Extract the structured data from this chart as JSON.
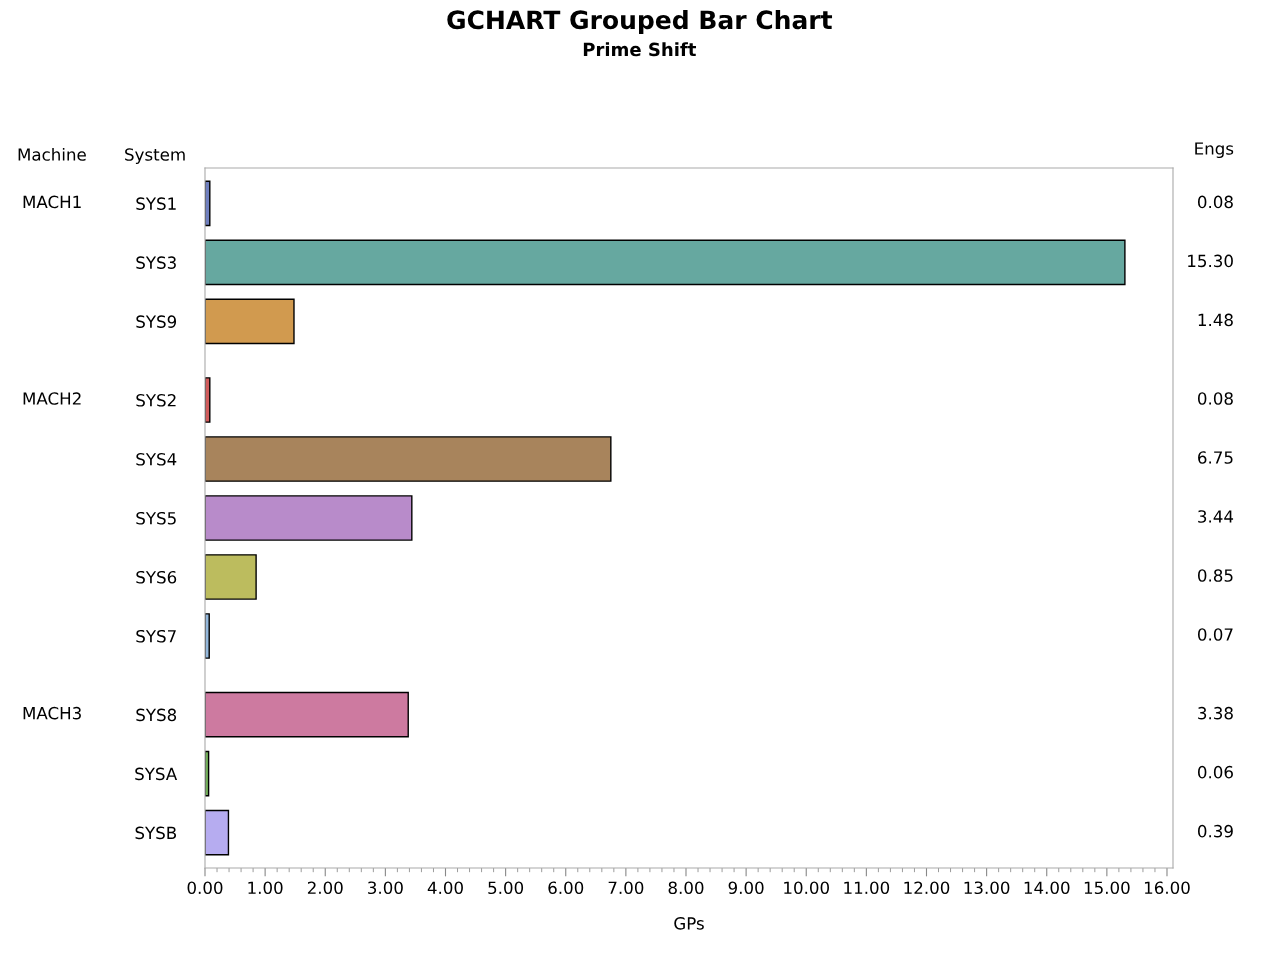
{
  "chart_data": {
    "type": "bar",
    "orientation": "horizontal",
    "title": "GCHART Grouped Bar Chart",
    "subtitle": "Prime Shift",
    "xlabel": "GPs",
    "categories": [
      "SYS1",
      "SYS3",
      "SYS9",
      null,
      "SYS2",
      "SYS4",
      "SYS5",
      "SYS6",
      "SYS7",
      null,
      "SYS8",
      "SYSA",
      "SYSB"
    ],
    "values": [
      0.08,
      15.3,
      1.48,
      null,
      0.08,
      6.75,
      3.44,
      0.85,
      0.07,
      null,
      3.38,
      0.06,
      0.39
    ],
    "value_labels": [
      "0.08",
      "15.30",
      "1.48",
      null,
      "0.08",
      "6.75",
      "3.44",
      "0.85",
      "0.07",
      null,
      "3.38",
      "0.06",
      "0.39"
    ],
    "colors": [
      "#6f7fbf",
      "#66a8a0",
      "#d19a4f",
      null,
      "#d05b5b",
      "#a8845c",
      "#b88bca",
      "#bcbc5e",
      "#94b8dc",
      null,
      "#cd7aa0",
      "#73b05a",
      "#b6acf0"
    ],
    "xlim": [
      0,
      16.1
    ],
    "xticks": [
      {
        "value": 0,
        "label": "0.00"
      },
      {
        "value": 1,
        "label": "1.00"
      },
      {
        "value": 2,
        "label": "2.00"
      },
      {
        "value": 3,
        "label": "3.00"
      },
      {
        "value": 4,
        "label": "4.00"
      },
      {
        "value": 5,
        "label": "5.00"
      },
      {
        "value": 6,
        "label": "6.00"
      },
      {
        "value": 7,
        "label": "7.00"
      },
      {
        "value": 8,
        "label": "8.00"
      },
      {
        "value": 9,
        "label": "9.00"
      },
      {
        "value": 10,
        "label": "10.00"
      },
      {
        "value": 11,
        "label": "11.00"
      },
      {
        "value": 12,
        "label": "12.00"
      },
      {
        "value": 13,
        "label": "13.00"
      },
      {
        "value": 14,
        "label": "14.00"
      },
      {
        "value": 15,
        "label": "15.00"
      },
      {
        "value": 16,
        "label": "16.00"
      }
    ],
    "annotations": [
      "Machine",
      "System",
      "Engs",
      "MACH1",
      "MACH2",
      "MACH3"
    ],
    "grid": false,
    "legend": false
  }
}
